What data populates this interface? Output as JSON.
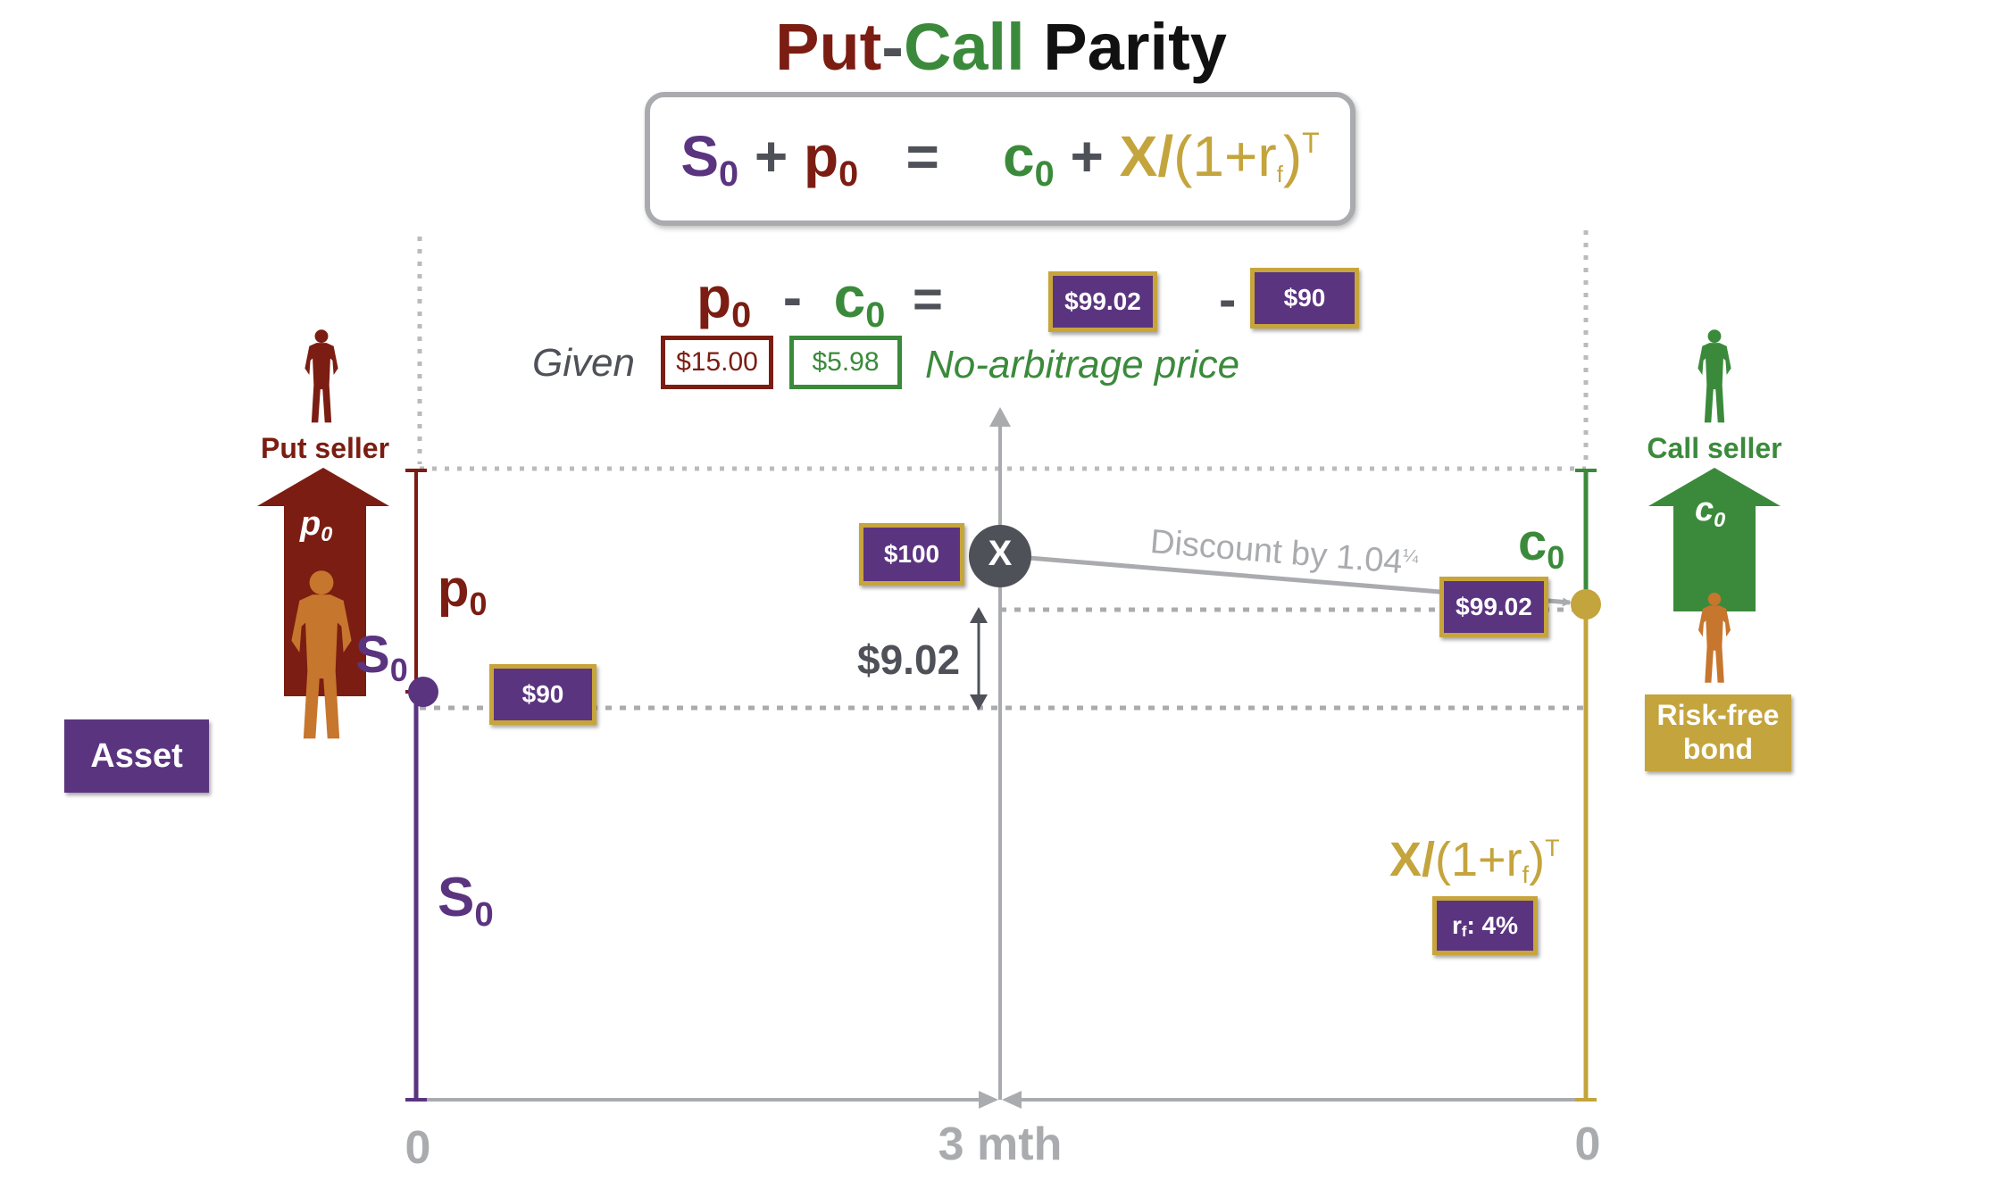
{
  "title": {
    "put": "Put",
    "dash": "-",
    "call": "Call",
    "parity": "Parity"
  },
  "formula": {
    "s": "S",
    "s_sub": "0",
    "plus1": "+",
    "p": "p",
    "p_sub": "0",
    "eq": "=",
    "c": "c",
    "c_sub": "0",
    "plus2": "+",
    "x": "X/",
    "disc": "(1+r",
    "disc_sub": "f",
    "disc_close": ")",
    "disc_sup": "T"
  },
  "equation2": {
    "p": "p",
    "p_sub": "0",
    "minus": "-",
    "c": "c",
    "c_sub": "0",
    "eq": "=",
    "box1": "$99.02",
    "minus2": "-",
    "box2": "$90"
  },
  "given_label": "Given",
  "given_value": "$15.00",
  "noarb_value": "$5.98",
  "noarb_label": "No-arbitrage price",
  "left": {
    "put_seller": "Put seller",
    "arrow_label": "p",
    "arrow_sub": "0",
    "p_label": "p",
    "p_sub": "0",
    "s_label": "S",
    "s_sub": "0",
    "s_bottom": "S",
    "s_bottom_sub": "0",
    "price_box": "$90",
    "asset": "Asset"
  },
  "middle": {
    "strike_box": "$100",
    "strike_marker": "X",
    "diff": "$9.02",
    "discount": "Discount by 1.04",
    "discount_sup": "¼"
  },
  "right": {
    "call_seller": "Call seller",
    "arrow_label": "c",
    "arrow_sub": "0",
    "c_label": "c",
    "c_sub": "0",
    "pv_box": "$99.02",
    "bond": "Risk-free bond",
    "bond_l1": "Risk-free",
    "bond_l2": "bond",
    "pv_formula_x": "X/",
    "pv_formula_rest": "(1+r",
    "pv_formula_sub": "f",
    "pv_formula_close": ")",
    "pv_formula_sup": "T",
    "rate": "r",
    "rate_sub": "f",
    "rate_rest": ": 4%"
  },
  "axis": {
    "left_tick": "0",
    "mid_tick": "3 mth",
    "right_tick": "0"
  },
  "colors": {
    "purple": "#5b3480",
    "red": "#7b1d12",
    "green": "#3b8a3b",
    "gold": "#c4a43c",
    "dark_gray": "#4e5157",
    "light_gray": "#a9abae",
    "orange": "#c7762e"
  },
  "icons": [
    "person-icon",
    "up-arrow-icon",
    "x-circle-icon"
  ]
}
